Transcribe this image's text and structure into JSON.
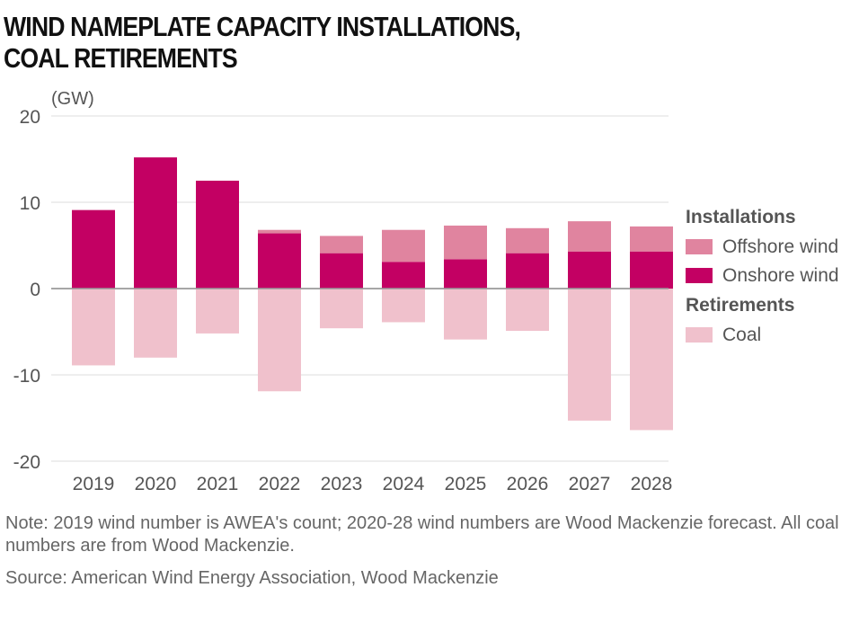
{
  "title_line1": "WIND NAMEPLATE CAPACITY INSTALLATIONS,",
  "title_line2": "COAL RETIREMENTS",
  "note": "Note: 2019 wind number is AWEA's count; 2020-28 wind numbers are Wood Mackenzie forecast. All coal numbers are from Wood Mackenzie.",
  "source": "Source: American Wind Energy Association, Wood Mackenzie",
  "colors": {
    "offshore": "#e0849f",
    "onshore": "#c30063",
    "coal": "#f0c1cc",
    "grid": "#dddddd",
    "zero": "#999999",
    "text": "#555555"
  },
  "chart_data": {
    "type": "bar",
    "stacked": true,
    "unit": "(GW)",
    "categories": [
      "2019",
      "2020",
      "2021",
      "2022",
      "2023",
      "2024",
      "2025",
      "2026",
      "2027",
      "2028"
    ],
    "ylim": [
      -20,
      20
    ],
    "yticks": [
      20,
      10,
      0,
      -10,
      -20
    ],
    "grid": true,
    "legend_position": "right",
    "legend": {
      "groups": [
        {
          "heading": "Installations",
          "items": [
            {
              "name": "Offshore wind",
              "series": "offshore"
            },
            {
              "name": "Onshore wind",
              "series": "onshore"
            }
          ]
        },
        {
          "heading": "Retirements",
          "items": [
            {
              "name": "Coal",
              "series": "coal"
            }
          ]
        }
      ]
    },
    "series": [
      {
        "key": "onshore",
        "name": "Onshore wind",
        "values": [
          9.1,
          15.2,
          12.5,
          6.4,
          4.1,
          3.1,
          3.4,
          4.1,
          4.3,
          4.3
        ]
      },
      {
        "key": "offshore",
        "name": "Offshore wind",
        "values": [
          0,
          0,
          0,
          0.4,
          2.0,
          3.7,
          3.9,
          2.9,
          3.5,
          2.9
        ]
      },
      {
        "key": "coal",
        "name": "Coal",
        "values": [
          -8.9,
          -8.0,
          -5.2,
          -11.9,
          -4.6,
          -3.9,
          -5.9,
          -4.9,
          -15.3,
          -16.4
        ]
      }
    ]
  }
}
